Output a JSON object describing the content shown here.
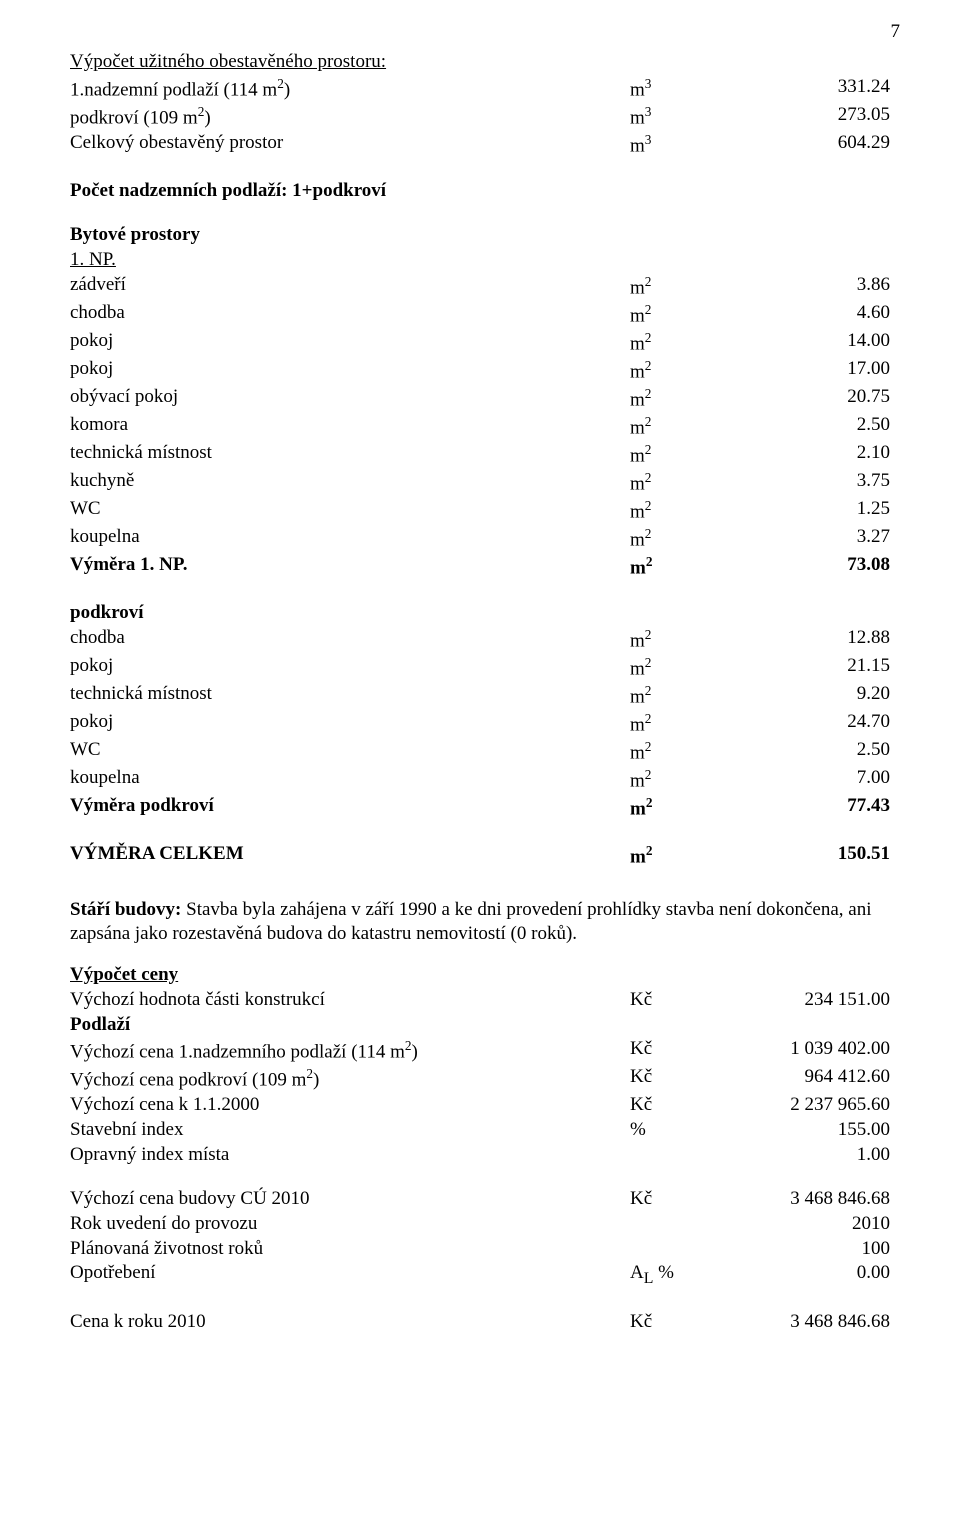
{
  "page_number": "7",
  "section1_title": "Výpočet užitného obestavěného prostoru:",
  "sec1_rows": [
    {
      "label": "  1.nadzemní podlaží  (114 m²)",
      "unit": "m³",
      "val": "331.24"
    },
    {
      "label": "  podkroví  (109 m²)",
      "unit": "m³",
      "val": "273.05"
    },
    {
      "label": "Celkový obestavěný prostor",
      "unit": "m³",
      "val": "604.29"
    }
  ],
  "line_pocet": "Počet nadzemních podlaží: 1+podkroví",
  "bytove_title": "Bytové prostory",
  "np1_title": "1. NP.",
  "np1_rows": [
    {
      "label": "zádveří",
      "unit": "m²",
      "val": "3.86"
    },
    {
      "label": "chodba",
      "unit": "m²",
      "val": "4.60"
    },
    {
      "label": "pokoj",
      "unit": "m²",
      "val": "14.00"
    },
    {
      "label": "pokoj",
      "unit": "m²",
      "val": "17.00"
    },
    {
      "label": "obývací pokoj",
      "unit": "m²",
      "val": "20.75"
    },
    {
      "label": "komora",
      "unit": "m²",
      "val": "2.50"
    },
    {
      "label": "technická místnost",
      "unit": "m²",
      "val": "2.10"
    },
    {
      "label": "kuchyně",
      "unit": "m²",
      "val": "3.75"
    },
    {
      "label": "WC",
      "unit": "m²",
      "val": "1.25"
    },
    {
      "label": "koupelna",
      "unit": "m²",
      "val": "3.27"
    }
  ],
  "np1_total": {
    "label": "Výměra 1. NP.",
    "unit": "m²",
    "val": "73.08"
  },
  "podk_title": "podkroví",
  "podk_rows": [
    {
      "label": "chodba",
      "unit": "m²",
      "val": "12.88"
    },
    {
      "label": "pokoj",
      "unit": "m²",
      "val": "21.15"
    },
    {
      "label": "technická místnost",
      "unit": "m²",
      "val": "9.20"
    },
    {
      "label": "pokoj",
      "unit": "m²",
      "val": "24.70"
    },
    {
      "label": "WC",
      "unit": "m²",
      "val": "2.50"
    },
    {
      "label": "koupelna",
      "unit": "m²",
      "val": "7.00"
    }
  ],
  "podk_total": {
    "label": "Výměra podkroví",
    "unit": "m²",
    "val": "77.43"
  },
  "celkem": {
    "label": "VÝMĚRA CELKEM",
    "unit": "m²",
    "val": "150.51"
  },
  "stari_label": "Stáří budovy:",
  "stari_text": " Stavba byla zahájena v září 1990 a ke dni provedení prohlídky stavba není dokončena, ani zapsána jako rozestavěná budova do katastru nemovitostí (0 roků).",
  "vypocet_title": "Výpočet ceny",
  "vypocet_rows": [
    {
      "label": "Výchozí hodnota části konstrukcí",
      "unit": "Kč",
      "val": "234 151.00",
      "bold": false
    }
  ],
  "podlazi_label": "Podlaží",
  "podlazi_rows": [
    {
      "label": "Výchozí cena  1.nadzemního podlaží  (114 m²)",
      "unit": "Kč",
      "val": "1 039 402.00"
    },
    {
      "label": "Výchozí cena podkroví  (109 m²)",
      "unit": "Kč",
      "val": "964 412.60"
    },
    {
      "label": "Výchozí cena k 1.1.2000",
      "unit": "Kč",
      "val": "2 237 965.60"
    },
    {
      "label": "Stavební index",
      "unit": "%",
      "val": "155.00"
    },
    {
      "label": "Opravný index místa",
      "unit": "",
      "val": "1.00"
    }
  ],
  "final_rows": [
    {
      "label": "Výchozí cena budovy CÚ 2010",
      "unit": "Kč",
      "val": "3 468 846.68"
    },
    {
      "label": "Rok uvedení do provozu",
      "unit": "",
      "val": "2010"
    },
    {
      "label": "Plánovaná životnost roků",
      "unit": "",
      "val": "100"
    },
    {
      "label": "Opotřebení",
      "unit": "Aₗ %",
      "val": "0.00"
    }
  ],
  "cena_row": {
    "label": "Cena k roku 2010",
    "unit": "Kč",
    "val": "3 468 846.68"
  }
}
